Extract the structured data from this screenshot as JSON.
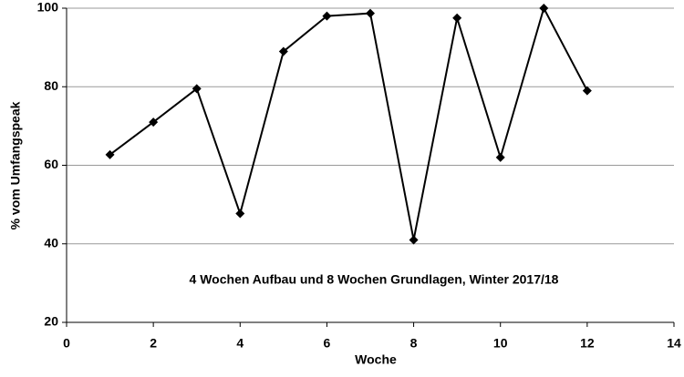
{
  "chart_data": {
    "type": "line",
    "xlabel": "Woche",
    "ylabel": "% vom Umfangspeak",
    "annotation": "4 Wochen Aufbau und 8 Wochen Grundlagen, Winter 2017/18",
    "x": [
      1,
      2,
      3,
      4,
      5,
      6,
      7,
      8,
      9,
      10,
      11,
      12
    ],
    "series": [
      {
        "color": "#000000",
        "values": [
          62.7,
          71,
          79.5,
          47.7,
          89,
          98,
          98.7,
          41,
          97.5,
          62,
          100,
          79
        ]
      }
    ],
    "xlim": [
      0,
      14
    ],
    "xticks": [
      0,
      2,
      4,
      6,
      8,
      10,
      12,
      14
    ],
    "ylim": [
      20,
      100
    ],
    "yticks": [
      20,
      40,
      60,
      80,
      100
    ],
    "grid": true
  }
}
